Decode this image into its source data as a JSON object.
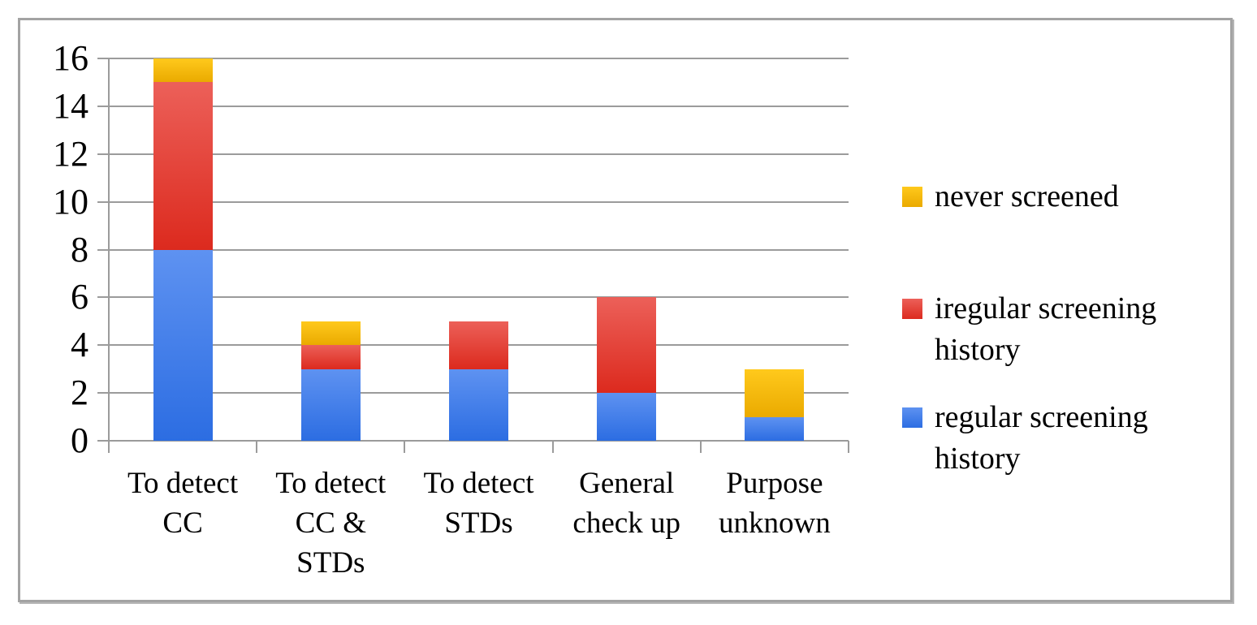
{
  "chart_data": {
    "type": "bar",
    "stacked": true,
    "title": "",
    "xlabel": "",
    "ylabel": "",
    "categories": [
      "To detect\nCC",
      "To detect\nCC &\nSTDs",
      "To detect\nSTDs",
      "General\ncheck up",
      "Purpose\nunknown"
    ],
    "series": [
      {
        "name": "regular screening history",
        "color_key": "blue",
        "values": [
          8,
          3,
          3,
          2,
          1
        ]
      },
      {
        "name": "iregular screening history",
        "color_key": "red",
        "values": [
          7,
          1,
          2,
          4,
          0
        ]
      },
      {
        "name": "never screened",
        "color_key": "yellow",
        "values": [
          1,
          1,
          0,
          0,
          2
        ]
      }
    ],
    "totals": [
      16,
      5,
      5,
      6,
      3
    ],
    "y_ticks": [
      0,
      2,
      4,
      6,
      8,
      10,
      12,
      14,
      16
    ],
    "ylim": [
      0,
      16
    ],
    "grid": true,
    "legend": {
      "position": "right",
      "items": [
        {
          "label": "never screened",
          "color_key": "yellow"
        },
        {
          "label": "iregular screening history",
          "color_key": "red"
        },
        {
          "label": "regular screening history",
          "color_key": "blue"
        }
      ]
    }
  },
  "colors": {
    "series": {
      "blue": {
        "top": "#5E92F1",
        "bottom": "#2C6DE2"
      },
      "red": {
        "top": "#EC6059",
        "bottom": "#DC2A1E"
      },
      "yellow": {
        "top": "#FFC91C",
        "bottom": "#EAAA00"
      }
    },
    "gridline": "#9B9B9B",
    "frame_border": "#A3A3A3",
    "text": "#000000",
    "background": "#FFFFFF"
  }
}
